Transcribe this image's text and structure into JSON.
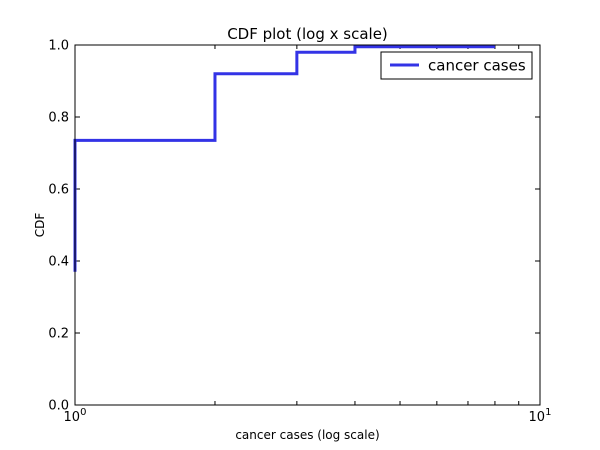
{
  "chart_data": {
    "type": "line",
    "title": "CDF plot (log x scale)",
    "xlabel": "cancer cases (log scale)",
    "ylabel": "CDF",
    "x_scale": "log",
    "xlim": [
      1,
      10
    ],
    "ylim": [
      0.0,
      1.0
    ],
    "x_ticks": [
      {
        "value": 1,
        "base": "10",
        "exp": "0"
      },
      {
        "value": 10,
        "base": "10",
        "exp": "1"
      }
    ],
    "y_ticks": [
      "0.0",
      "0.2",
      "0.4",
      "0.6",
      "0.8",
      "1.0"
    ],
    "grid": false,
    "legend_position": "top-right",
    "series": [
      {
        "name": "cancer cases",
        "color": "#3333e6",
        "step": "post",
        "x": [
          1,
          1,
          2,
          3,
          4,
          8
        ],
        "y": [
          0.37,
          0.735,
          0.92,
          0.98,
          0.995,
          0.995
        ]
      }
    ]
  }
}
